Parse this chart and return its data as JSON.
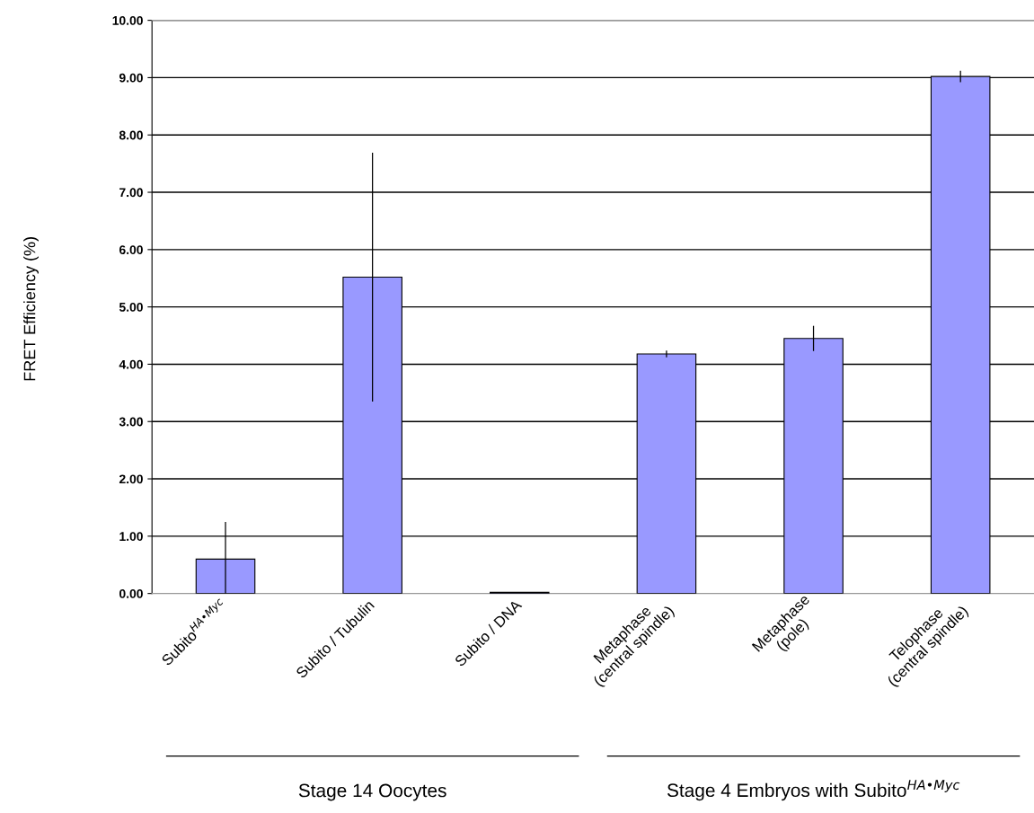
{
  "chart_data": {
    "type": "bar",
    "ylabel": "FRET Efficiency (%)",
    "categories": [
      "Subito$^{HA•Myc}$",
      "Subito / Tubulin",
      "Subito / DNA",
      "Metaphase\n(central spindle)",
      "Metaphase\n(pole)",
      "Telophase\n(central spindle)"
    ],
    "values": [
      0.6,
      5.52,
      0.02,
      4.18,
      4.45,
      9.02
    ],
    "errors": [
      [
        0,
        1.25
      ],
      2.17,
      null,
      0.06,
      0.22,
      0.1
    ],
    "color": "#9999ff",
    "ylim": [
      0,
      10
    ],
    "yticks": [
      {
        "value": 0,
        "label": "0.00"
      },
      {
        "value": 1,
        "label": "1.00"
      },
      {
        "value": 2,
        "label": "2.00"
      },
      {
        "value": 3,
        "label": "3.00"
      },
      {
        "value": 4,
        "label": "4.00"
      },
      {
        "value": 5,
        "label": "5.00"
      },
      {
        "value": 6,
        "label": "6.00"
      },
      {
        "value": 7,
        "label": "7.00"
      },
      {
        "value": 8,
        "label": "8.00"
      },
      {
        "value": 9,
        "label": "9.00"
      },
      {
        "value": 10,
        "label": "10.00"
      }
    ],
    "grid": "y",
    "annotations": [
      "Stage 14 Oocytes",
      "Stage 4 Embryos with Subito$^{HA•Myc}$"
    ]
  }
}
